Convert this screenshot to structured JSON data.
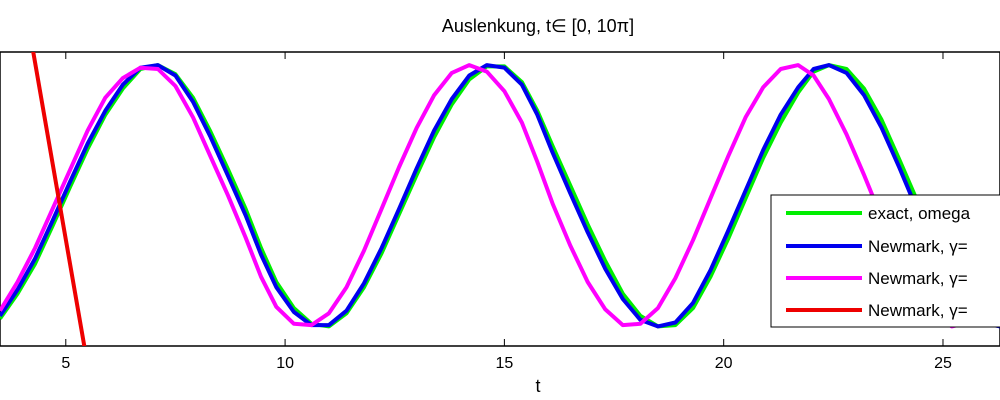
{
  "chart_data": {
    "type": "line",
    "title": "Auslenkung, t∈ [0, 10π]",
    "xlabel": "t",
    "ylabel": "",
    "xlim": [
      3.5,
      26.3
    ],
    "ylim": [
      -1.15,
      1.1
    ],
    "xticks": [
      5,
      10,
      15,
      20,
      25
    ],
    "xtick_labels": [
      "5",
      "10",
      "15",
      "20",
      "25"
    ],
    "legend": {
      "position": "right",
      "entries": [
        "exact, omega",
        "Newmark, γ=",
        "Newmark, γ=",
        "Newmark, γ="
      ]
    },
    "series": [
      {
        "name": "exact, omega",
        "color": "#00ee00",
        "x": [
          3.5,
          3.9,
          4.3,
          4.7,
          5.1,
          5.5,
          5.9,
          6.3,
          6.7,
          7.1,
          7.5,
          7.9,
          8.3,
          8.7,
          9.1,
          9.45,
          9.8,
          10.2,
          10.6,
          11.0,
          11.4,
          11.8,
          12.2,
          12.6,
          13.0,
          13.4,
          13.8,
          14.2,
          14.6,
          15.0,
          15.4,
          15.75,
          16.1,
          16.5,
          16.9,
          17.3,
          17.7,
          18.1,
          18.5,
          18.9,
          19.3,
          19.7,
          20.1,
          20.5,
          20.9,
          21.3,
          21.7,
          22.05,
          22.4,
          22.8,
          23.2,
          23.6,
          24.0,
          24.4,
          24.8,
          25.2,
          25.6,
          26.0,
          26.3
        ],
        "y": [
          -0.94,
          -0.75,
          -0.52,
          -0.23,
          0.07,
          0.36,
          0.62,
          0.82,
          0.97,
          1.0,
          0.93,
          0.75,
          0.49,
          0.2,
          -0.1,
          -0.4,
          -0.66,
          -0.86,
          -0.98,
          -1.0,
          -0.9,
          -0.7,
          -0.44,
          -0.14,
          0.16,
          0.45,
          0.7,
          0.89,
          0.99,
          0.99,
          0.87,
          0.65,
          0.38,
          0.08,
          -0.22,
          -0.5,
          -0.75,
          -0.92,
          -1.0,
          -0.99,
          -0.86,
          -0.62,
          -0.33,
          -0.02,
          0.29,
          0.56,
          0.79,
          0.95,
          1.0,
          0.97,
          0.82,
          0.58,
          0.28,
          -0.03,
          -0.34,
          -0.61,
          -0.83,
          -0.96,
          -1.0
        ]
      },
      {
        "name": "Newmark, γ=",
        "color": "#0000ee",
        "x": [
          3.5,
          3.9,
          4.3,
          4.7,
          5.1,
          5.5,
          5.9,
          6.3,
          6.7,
          7.1,
          7.5,
          7.9,
          8.3,
          8.7,
          9.1,
          9.45,
          9.8,
          10.2,
          10.6,
          11.0,
          11.4,
          11.8,
          12.2,
          12.6,
          13.0,
          13.4,
          13.8,
          14.2,
          14.6,
          15.0,
          15.4,
          15.75,
          16.1,
          16.5,
          16.9,
          17.3,
          17.7,
          18.1,
          18.5,
          18.9,
          19.3,
          19.7,
          20.1,
          20.5,
          20.9,
          21.3,
          21.7,
          22.05,
          22.4,
          22.8,
          23.2,
          23.6,
          24.0,
          24.4,
          24.8,
          25.2,
          25.6,
          26.0,
          26.3
        ],
        "y": [
          -0.92,
          -0.72,
          -0.48,
          -0.19,
          0.11,
          0.4,
          0.65,
          0.85,
          0.98,
          1.0,
          0.92,
          0.72,
          0.45,
          0.15,
          -0.15,
          -0.45,
          -0.7,
          -0.89,
          -0.99,
          -0.99,
          -0.88,
          -0.67,
          -0.4,
          -0.1,
          0.21,
          0.5,
          0.74,
          0.92,
          1.0,
          0.98,
          0.85,
          0.62,
          0.33,
          0.02,
          -0.28,
          -0.56,
          -0.79,
          -0.95,
          -1.0,
          -0.97,
          -0.82,
          -0.57,
          -0.27,
          0.04,
          0.35,
          0.62,
          0.83,
          0.97,
          1.0,
          0.94,
          0.77,
          0.52,
          0.22,
          -0.1,
          -0.4,
          -0.67,
          -0.87,
          -0.98,
          -1.0
        ]
      },
      {
        "name": "Newmark, γ=",
        "color": "#ff00ff",
        "x": [
          3.5,
          3.9,
          4.3,
          4.7,
          5.1,
          5.5,
          5.9,
          6.3,
          6.7,
          7.1,
          7.5,
          7.9,
          8.3,
          8.7,
          9.1,
          9.45,
          9.8,
          10.2,
          10.6,
          11.0,
          11.4,
          11.8,
          12.2,
          12.6,
          13.0,
          13.4,
          13.8,
          14.2,
          14.6,
          15.0,
          15.4,
          15.75,
          16.1,
          16.5,
          16.9,
          17.3,
          17.7,
          18.1,
          18.5,
          18.9,
          19.3,
          19.7,
          20.1,
          20.5,
          20.9,
          21.3,
          21.7,
          22.05,
          22.4,
          22.8,
          23.2,
          23.6,
          24.0,
          24.4,
          24.8,
          25.2,
          25.6,
          26.0,
          26.3
        ],
        "y": [
          -0.88,
          -0.66,
          -0.4,
          -0.1,
          0.2,
          0.5,
          0.75,
          0.9,
          0.98,
          0.97,
          0.84,
          0.6,
          0.3,
          0.0,
          -0.32,
          -0.62,
          -0.85,
          -0.98,
          -0.99,
          -0.9,
          -0.7,
          -0.42,
          -0.1,
          0.22,
          0.52,
          0.77,
          0.94,
          1.0,
          0.95,
          0.8,
          0.56,
          0.26,
          -0.06,
          -0.38,
          -0.66,
          -0.87,
          -0.99,
          -0.98,
          -0.86,
          -0.63,
          -0.34,
          -0.02,
          0.3,
          0.6,
          0.83,
          0.97,
          1.0,
          0.92,
          0.74,
          0.47,
          0.16,
          -0.17,
          -0.48,
          -0.74,
          -0.92,
          -1.0,
          -0.97,
          -0.84,
          -0.64
        ]
      },
      {
        "name": "Newmark, γ=",
        "color": "#ee0000",
        "x": [
          4.0,
          5.5
        ],
        "y": [
          1.6,
          -1.3
        ]
      }
    ]
  }
}
